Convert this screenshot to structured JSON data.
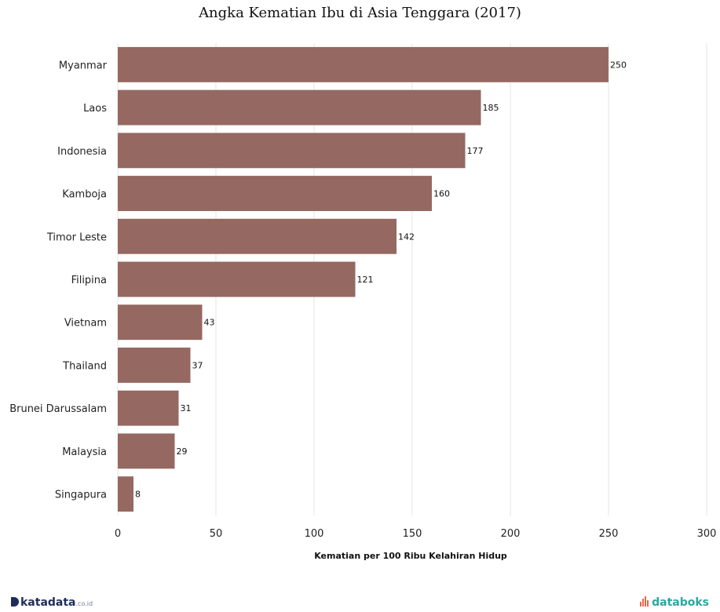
{
  "chart_data": {
    "type": "bar",
    "orientation": "horizontal",
    "title": "Angka Kematian Ibu di Asia Tenggara (2017)",
    "xlabel": "Kematian per 100 Ribu Kelahiran Hidup",
    "ylabel": "",
    "categories": [
      "Myanmar",
      "Laos",
      "Indonesia",
      "Kamboja",
      "Timor Leste",
      "Filipina",
      "Vietnam",
      "Thailand",
      "Brunei Darussalam",
      "Malaysia",
      "Singapura"
    ],
    "values": [
      250,
      185,
      177,
      160,
      142,
      121,
      43,
      37,
      31,
      29,
      8
    ],
    "xlim": [
      0,
      300
    ],
    "xticks": [
      "0",
      "50",
      "100",
      "150",
      "200",
      "250",
      "300"
    ],
    "grid": "vertical",
    "bar_color": "#956861",
    "data_labels": true
  },
  "footer": {
    "brand_left": "katadata",
    "brand_left_suffix": ".co.id",
    "brand_right": "databoks"
  }
}
